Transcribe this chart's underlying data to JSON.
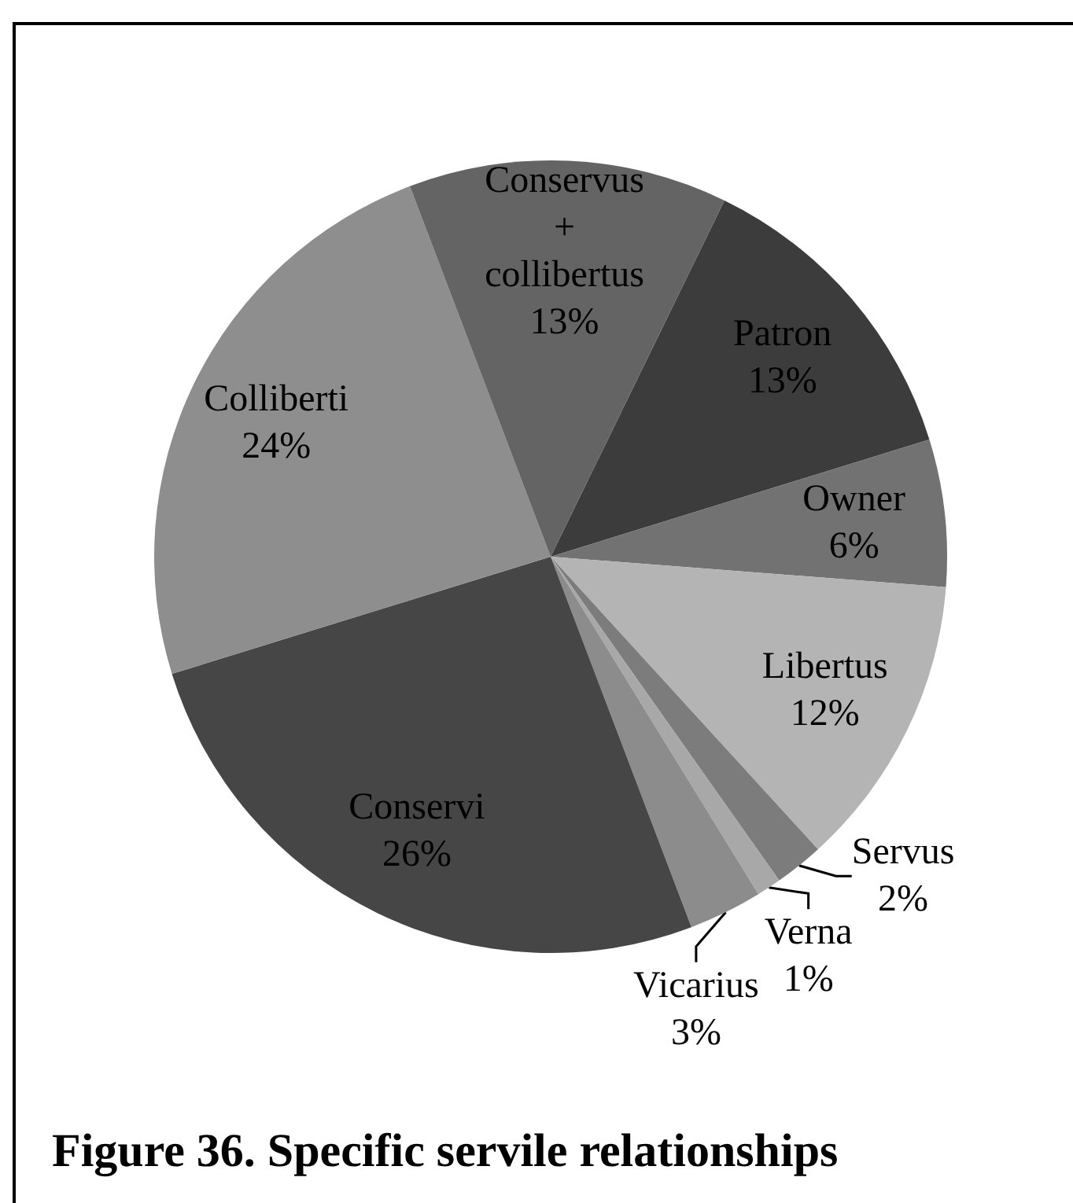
{
  "chart_data": {
    "type": "pie",
    "title": "Figure 36. Specific servile relationships",
    "categories": [
      "Patron",
      "Owner",
      "Libertus",
      "Servus",
      "Verna",
      "Vicarius",
      "Conservi",
      "Colliberti",
      "Conservus\n+\ncollibertus"
    ],
    "values": [
      13,
      6,
      12,
      2,
      1,
      3,
      26,
      24,
      13
    ],
    "value_labels": [
      "13%",
      "6%",
      "12%",
      "2%",
      "1%",
      "3%",
      "26%",
      "24%",
      "13%"
    ],
    "colors": [
      "#3c3c3c",
      "#727272",
      "#b4b4b4",
      "#7c7c7c",
      "#a8a8a8",
      "#8c8c8c",
      "#464646",
      "#8e8e8e",
      "#646464"
    ]
  }
}
